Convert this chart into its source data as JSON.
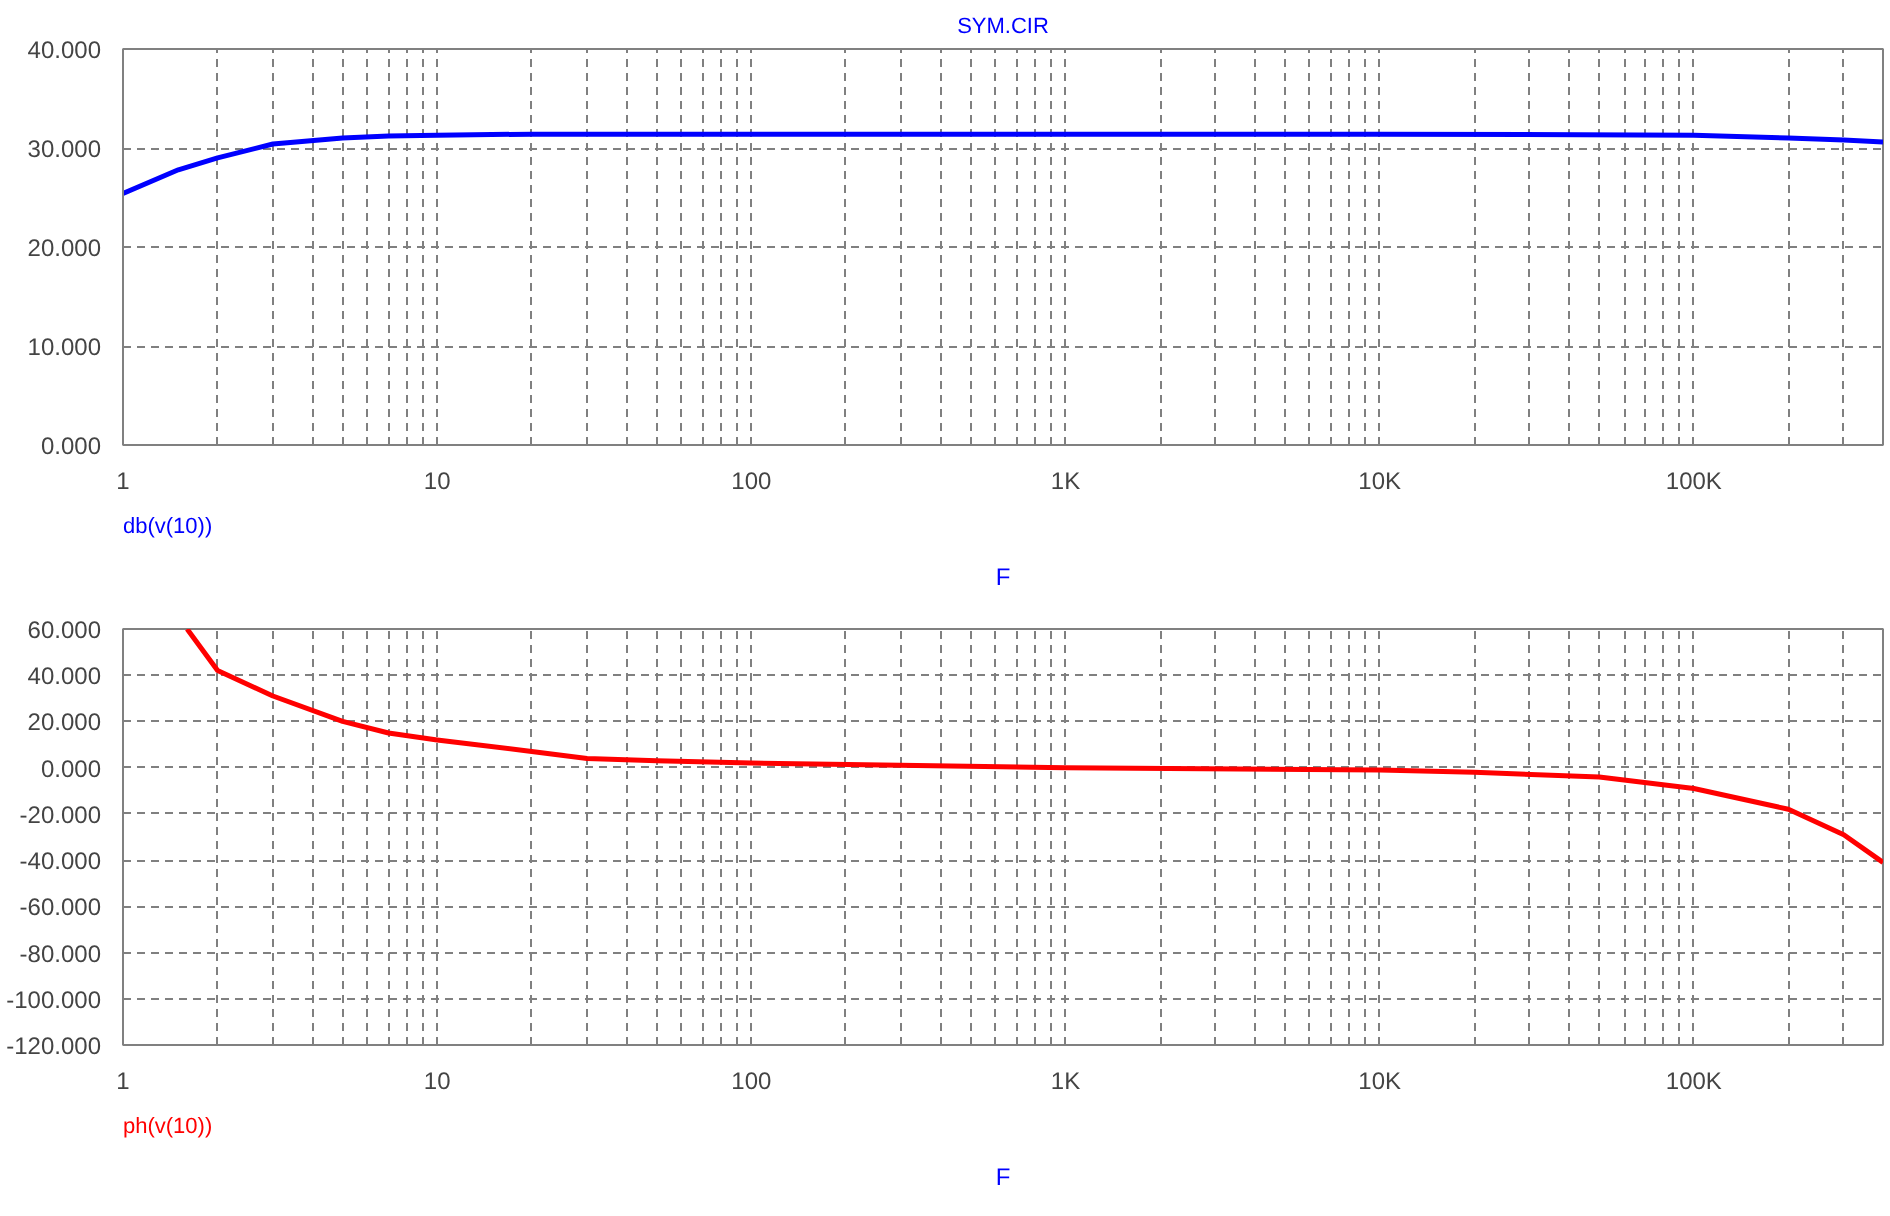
{
  "chart_data": [
    {
      "type": "line",
      "title": "SYM.CIR",
      "xlabel": "F",
      "log": "x",
      "grid": true,
      "marker": "none",
      "line_style": "solid",
      "xlim": [
        1,
        400000
      ],
      "xticks": [
        1,
        {
          "value": 2,
          "label": null
        },
        {
          "value": 3,
          "label": null
        },
        {
          "value": 4,
          "label": null
        },
        {
          "value": 5,
          "label": null
        },
        {
          "value": 6,
          "label": null
        },
        {
          "value": 7,
          "label": null
        },
        {
          "value": 8,
          "label": null
        },
        {
          "value": 9,
          "label": null
        },
        10,
        {
          "value": 20,
          "label": null
        },
        {
          "value": 30,
          "label": null
        },
        {
          "value": 40,
          "label": null
        },
        {
          "value": 50,
          "label": null
        },
        {
          "value": 60,
          "label": null
        },
        {
          "value": 70,
          "label": null
        },
        {
          "value": 80,
          "label": null
        },
        {
          "value": 90,
          "label": null
        },
        100,
        {
          "value": 200,
          "label": null
        },
        {
          "value": 300,
          "label": null
        },
        {
          "value": 400,
          "label": null
        },
        {
          "value": 500,
          "label": null
        },
        {
          "value": 600,
          "label": null
        },
        {
          "value": 700,
          "label": null
        },
        {
          "value": 800,
          "label": null
        },
        {
          "value": 900,
          "label": null
        },
        {
          "value": 1000,
          "label": "1K"
        },
        {
          "value": 2000,
          "label": null
        },
        {
          "value": 3000,
          "label": null
        },
        {
          "value": 4000,
          "label": null
        },
        {
          "value": 5000,
          "label": null
        },
        {
          "value": 6000,
          "label": null
        },
        {
          "value": 7000,
          "label": null
        },
        {
          "value": 8000,
          "label": null
        },
        {
          "value": 9000,
          "label": null
        },
        {
          "value": 10000,
          "label": "10K"
        },
        {
          "value": 20000,
          "label": null
        },
        {
          "value": 30000,
          "label": null
        },
        {
          "value": 40000,
          "label": null
        },
        {
          "value": 50000,
          "label": null
        },
        {
          "value": 60000,
          "label": null
        },
        {
          "value": 70000,
          "label": null
        },
        {
          "value": 80000,
          "label": null
        },
        {
          "value": 90000,
          "label": null
        },
        {
          "value": 100000,
          "label": "100K"
        },
        {
          "value": 200000,
          "label": null
        },
        {
          "value": 300000,
          "label": null
        }
      ],
      "ylim": [
        0,
        40
      ],
      "yticks": [
        {
          "value": 0,
          "label": "0.000"
        },
        {
          "value": 10,
          "label": "10.000"
        },
        {
          "value": 20,
          "label": "20.000"
        },
        {
          "value": 30,
          "label": "30.000"
        },
        {
          "value": 40,
          "label": "40.000"
        }
      ],
      "series": [
        {
          "name": "db(v(10))",
          "color": "#0000ff",
          "x": [
            1,
            1.5,
            2,
            3,
            5,
            7,
            10,
            20,
            100,
            1000,
            10000,
            100000,
            200000,
            300000,
            400000
          ],
          "values": [
            25.4,
            27.8,
            29,
            30.4,
            31,
            31.2,
            31.3,
            31.4,
            31.4,
            31.4,
            31.4,
            31.3,
            31,
            30.8,
            30.6
          ]
        }
      ]
    },
    {
      "type": "line",
      "xlabel": "F",
      "log": "x",
      "grid": true,
      "marker": "none",
      "line_style": "solid",
      "xlim": [
        1,
        400000
      ],
      "xticks": [
        1,
        {
          "value": 2,
          "label": null
        },
        {
          "value": 3,
          "label": null
        },
        {
          "value": 4,
          "label": null
        },
        {
          "value": 5,
          "label": null
        },
        {
          "value": 6,
          "label": null
        },
        {
          "value": 7,
          "label": null
        },
        {
          "value": 8,
          "label": null
        },
        {
          "value": 9,
          "label": null
        },
        10,
        {
          "value": 20,
          "label": null
        },
        {
          "value": 30,
          "label": null
        },
        {
          "value": 40,
          "label": null
        },
        {
          "value": 50,
          "label": null
        },
        {
          "value": 60,
          "label": null
        },
        {
          "value": 70,
          "label": null
        },
        {
          "value": 80,
          "label": null
        },
        {
          "value": 90,
          "label": null
        },
        100,
        {
          "value": 200,
          "label": null
        },
        {
          "value": 300,
          "label": null
        },
        {
          "value": 400,
          "label": null
        },
        {
          "value": 500,
          "label": null
        },
        {
          "value": 600,
          "label": null
        },
        {
          "value": 700,
          "label": null
        },
        {
          "value": 800,
          "label": null
        },
        {
          "value": 900,
          "label": null
        },
        {
          "value": 1000,
          "label": "1K"
        },
        {
          "value": 2000,
          "label": null
        },
        {
          "value": 3000,
          "label": null
        },
        {
          "value": 4000,
          "label": null
        },
        {
          "value": 5000,
          "label": null
        },
        {
          "value": 6000,
          "label": null
        },
        {
          "value": 7000,
          "label": null
        },
        {
          "value": 8000,
          "label": null
        },
        {
          "value": 9000,
          "label": null
        },
        {
          "value": 10000,
          "label": "10K"
        },
        {
          "value": 20000,
          "label": null
        },
        {
          "value": 30000,
          "label": null
        },
        {
          "value": 40000,
          "label": null
        },
        {
          "value": 50000,
          "label": null
        },
        {
          "value": 60000,
          "label": null
        },
        {
          "value": 70000,
          "label": null
        },
        {
          "value": 80000,
          "label": null
        },
        {
          "value": 90000,
          "label": null
        },
        {
          "value": 100000,
          "label": "100K"
        },
        {
          "value": 200000,
          "label": null
        },
        {
          "value": 300000,
          "label": null
        }
      ],
      "ylim": [
        -120,
        60
      ],
      "yticks": [
        {
          "value": -120,
          "label": "-120.000"
        },
        {
          "value": -100,
          "label": "-100.000"
        },
        {
          "value": -80,
          "label": "-80.000"
        },
        {
          "value": -60,
          "label": "-60.000"
        },
        {
          "value": -40,
          "label": "-40.000"
        },
        {
          "value": -20,
          "label": "-20.000"
        },
        {
          "value": 0,
          "label": "0.000"
        },
        {
          "value": 20,
          "label": "20.000"
        },
        {
          "value": 40,
          "label": "40.000"
        },
        {
          "value": 60,
          "label": "60.000"
        }
      ],
      "series": [
        {
          "name": "ph(v(10))",
          "color": "#ff0000",
          "x": [
            1.6,
            2,
            3,
            5,
            7,
            10,
            20,
            30,
            50,
            100,
            1000,
            10000,
            20000,
            50000,
            100000,
            200000,
            300000,
            400000
          ],
          "values": [
            60,
            42,
            31,
            20,
            15,
            12,
            7,
            4,
            3,
            2,
            0,
            -1,
            -2,
            -4,
            -9,
            -18,
            -29,
            -41
          ]
        }
      ]
    }
  ]
}
